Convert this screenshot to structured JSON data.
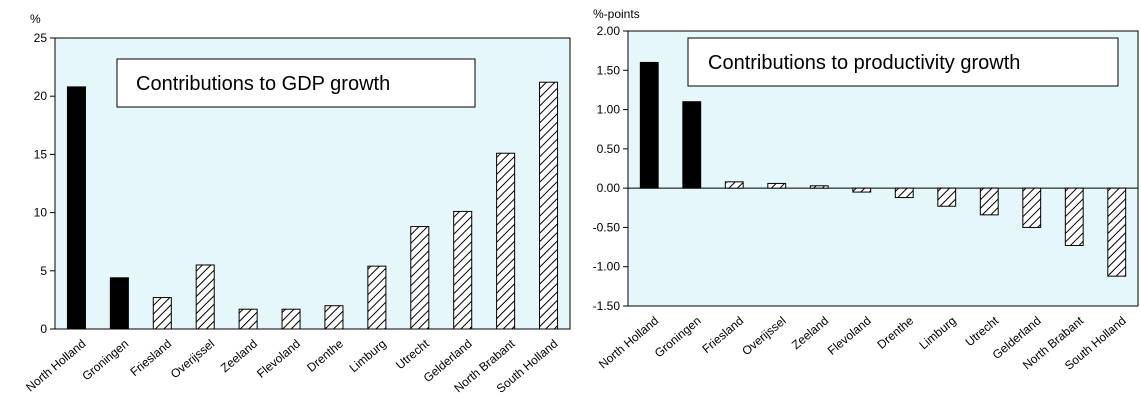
{
  "chart_data": [
    {
      "type": "bar",
      "title": "Contributions to GDP growth",
      "ylabel": "%",
      "ylim": [
        0,
        25
      ],
      "yticks": [
        "0",
        "5",
        "10",
        "15",
        "20",
        "25"
      ],
      "categories": [
        "North Holland",
        "Groningen",
        "Friesland",
        "Overijssel",
        "Zeeland",
        "Flevoland",
        "Drenthe",
        "Limburg",
        "Utrecht",
        "Gelderland",
        "North Brabant",
        "South Holland"
      ],
      "values": [
        20.8,
        4.4,
        2.7,
        5.5,
        1.7,
        1.7,
        2.0,
        5.4,
        8.8,
        10.1,
        15.1,
        21.2
      ],
      "bar_fill": [
        "solid",
        "solid",
        "hatched",
        "hatched",
        "hatched",
        "hatched",
        "hatched",
        "hatched",
        "hatched",
        "hatched",
        "hatched",
        "hatched"
      ],
      "background": "#e6f7fb"
    },
    {
      "type": "bar",
      "title": "Contributions to productivity growth",
      "ylabel": "%-points",
      "ylim": [
        -1.5,
        2.0
      ],
      "yticks": [
        "-1.50",
        "-1.00",
        "-0.50",
        "0.00",
        "0.50",
        "1.00",
        "1.50",
        "2.00"
      ],
      "categories": [
        "North Holland",
        "Groningen",
        "Friesland",
        "Overijssel",
        "Zeeland",
        "Flevoland",
        "Drenthe",
        "Limburg",
        "Utrecht",
        "Gelderland",
        "North Brabant",
        "South Holland"
      ],
      "values": [
        1.6,
        1.1,
        0.08,
        0.06,
        0.03,
        -0.05,
        -0.12,
        -0.23,
        -0.34,
        -0.5,
        -0.73,
        -1.12
      ],
      "bar_fill": [
        "solid",
        "solid",
        "hatched",
        "hatched",
        "hatched",
        "hatched",
        "hatched",
        "hatched",
        "hatched",
        "hatched",
        "hatched",
        "hatched"
      ],
      "background": "#e6f7fb"
    }
  ]
}
